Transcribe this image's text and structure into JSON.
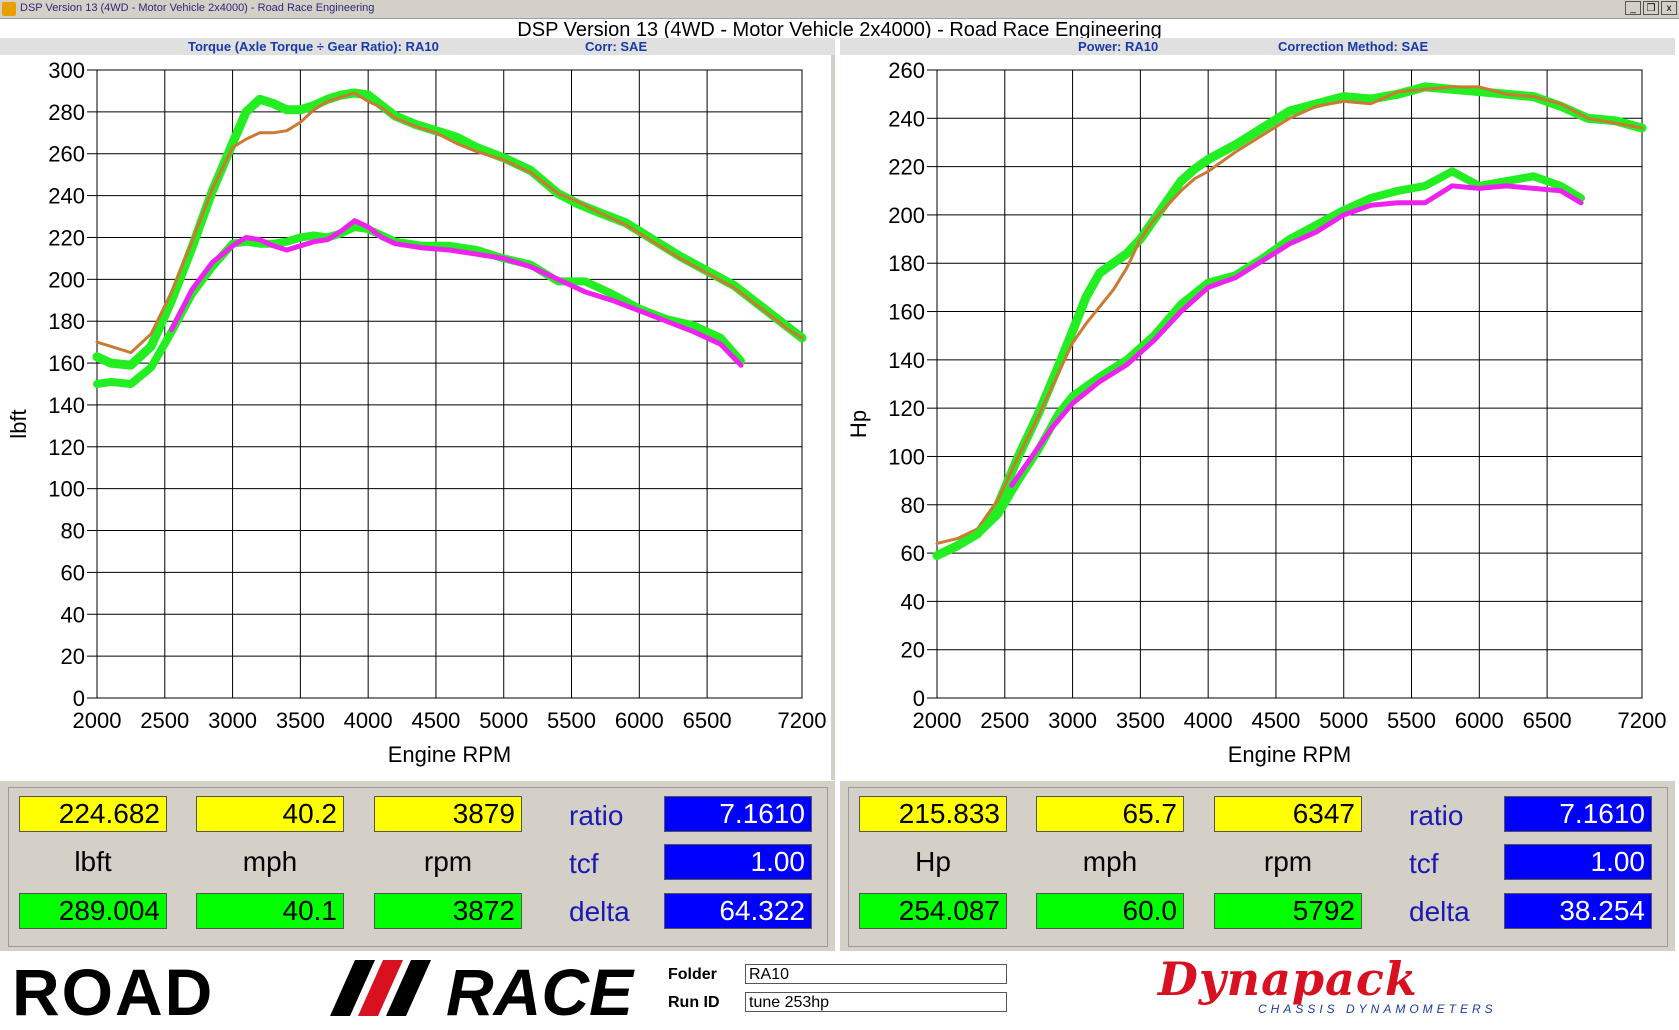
{
  "window": {
    "title": "DSP Version 13 (4WD - Motor Vehicle 2x4000) - Road Race Engineering",
    "minimize": "_",
    "restore": "❒",
    "close": "x"
  },
  "app_title": "DSP Version 13 (4WD - Motor Vehicle 2x4000) - Road Race Engineering",
  "left_header": {
    "measure": "Torque (Axle Torque ÷ Gear Ratio): RA10",
    "corr": "Corr: SAE"
  },
  "right_header": {
    "measure": "Power: RA10",
    "corr": "Correction Method: SAE"
  },
  "colors": {
    "green": "#22ee22",
    "orange": "#cc7a33",
    "magenta": "#ee22ee"
  },
  "chart_data": [
    {
      "type": "line",
      "xlabel": "Engine RPM",
      "ylabel": "lbft",
      "xlim": [
        2000,
        7200
      ],
      "ylim": [
        0,
        300
      ],
      "xticks": [
        2000,
        2500,
        3000,
        3500,
        4000,
        4500,
        5000,
        5500,
        6000,
        6500,
        7200
      ],
      "yticks": [
        0,
        20,
        40,
        60,
        80,
        100,
        120,
        140,
        160,
        180,
        200,
        220,
        240,
        260,
        280,
        300
      ],
      "grid": true,
      "series": [
        {
          "color": "green",
          "width": 9,
          "x": [
            2000,
            2100,
            2250,
            2400,
            2550,
            2700,
            2850,
            3000,
            3100,
            3200,
            3300,
            3400,
            3500,
            3600,
            3700,
            3800,
            3900,
            4000,
            4100,
            4200,
            4350,
            4500,
            4650,
            4800,
            5000,
            5200,
            5400,
            5550,
            5700,
            5900,
            6100,
            6300,
            6500,
            6700,
            6900,
            7100,
            7200
          ],
          "y": [
            163,
            160,
            159,
            168,
            190,
            215,
            242,
            265,
            280,
            286,
            284,
            281,
            281,
            283,
            286,
            288,
            289,
            288,
            283,
            278,
            274,
            271,
            268,
            263,
            258,
            252,
            241,
            236,
            232,
            227,
            219,
            211,
            204,
            197,
            187,
            177,
            172
          ]
        },
        {
          "color": "orange",
          "width": 3,
          "x": [
            2000,
            2100,
            2250,
            2400,
            2550,
            2700,
            2850,
            3000,
            3100,
            3200,
            3300,
            3400,
            3500,
            3600,
            3700,
            3800,
            3900,
            4000,
            4100,
            4200,
            4350,
            4500,
            4650,
            4800,
            5000,
            5200,
            5400,
            5550,
            5700,
            5900,
            6100,
            6300,
            6500,
            6700,
            6900,
            7100,
            7200
          ],
          "y": [
            170,
            168,
            165,
            174,
            194,
            218,
            243,
            263,
            267,
            270,
            270,
            271,
            275,
            281,
            285,
            287,
            289,
            285,
            282,
            277,
            273,
            270,
            265,
            261,
            257,
            251,
            241,
            237,
            232,
            226,
            218,
            210,
            203,
            196,
            186,
            176,
            172
          ]
        },
        {
          "color": "green",
          "width": 8,
          "x": [
            2000,
            2100,
            2250,
            2400,
            2550,
            2700,
            2850,
            3000,
            3100,
            3200,
            3300,
            3400,
            3500,
            3600,
            3700,
            3800,
            3900,
            4000,
            4100,
            4200,
            4400,
            4600,
            4800,
            5000,
            5200,
            5400,
            5600,
            5800,
            6000,
            6200,
            6400,
            6600,
            6750
          ],
          "y": [
            150,
            151,
            150,
            158,
            175,
            193,
            206,
            217,
            218,
            217,
            217,
            218,
            220,
            221,
            220,
            222,
            225,
            224,
            221,
            218,
            216,
            216,
            214,
            210,
            207,
            199,
            199,
            193,
            186,
            181,
            178,
            172,
            161
          ]
        },
        {
          "color": "magenta",
          "width": 5,
          "x": [
            2550,
            2700,
            2850,
            3000,
            3100,
            3200,
            3300,
            3400,
            3500,
            3600,
            3700,
            3800,
            3900,
            4000,
            4100,
            4200,
            4400,
            4600,
            4800,
            5000,
            5200,
            5400,
            5600,
            5800,
            6000,
            6200,
            6400,
            6600,
            6750
          ],
          "y": [
            176,
            195,
            208,
            216,
            220,
            219,
            216,
            214,
            216,
            218,
            219,
            223,
            228,
            225,
            220,
            217,
            215,
            214,
            212,
            210,
            206,
            200,
            194,
            190,
            185,
            180,
            175,
            169,
            159
          ]
        }
      ]
    },
    {
      "type": "line",
      "xlabel": "Engine RPM",
      "ylabel": "Hp",
      "xlim": [
        2000,
        7200
      ],
      "ylim": [
        0,
        260
      ],
      "xticks": [
        2000,
        2500,
        3000,
        3500,
        4000,
        4500,
        5000,
        5500,
        6000,
        6500,
        7200
      ],
      "yticks": [
        0,
        20,
        40,
        60,
        80,
        100,
        120,
        140,
        160,
        180,
        200,
        220,
        240,
        260
      ],
      "grid": true,
      "series": [
        {
          "color": "green",
          "width": 9,
          "x": [
            2000,
            2150,
            2300,
            2450,
            2600,
            2750,
            2900,
            3000,
            3100,
            3200,
            3300,
            3400,
            3500,
            3600,
            3700,
            3800,
            3900,
            4000,
            4200,
            4400,
            4600,
            4800,
            5000,
            5200,
            5400,
            5600,
            5800,
            6000,
            6200,
            6400,
            6600,
            6800,
            7000,
            7200
          ],
          "y": [
            59,
            63,
            68,
            80,
            100,
            118,
            138,
            152,
            166,
            176,
            180,
            184,
            190,
            198,
            206,
            214,
            219,
            223,
            229,
            236,
            243,
            246,
            249,
            248,
            250,
            253,
            252,
            251,
            250,
            249,
            245,
            240,
            239,
            236
          ]
        },
        {
          "color": "orange",
          "width": 3,
          "x": [
            2000,
            2150,
            2300,
            2450,
            2600,
            2750,
            2900,
            3000,
            3100,
            3200,
            3300,
            3400,
            3500,
            3600,
            3700,
            3800,
            3900,
            4000,
            4200,
            4400,
            4600,
            4800,
            5000,
            5200,
            5400,
            5600,
            5800,
            6000,
            6200,
            6400,
            6600,
            6800,
            7000,
            7200
          ],
          "y": [
            64,
            66,
            70,
            82,
            100,
            117,
            135,
            147,
            155,
            162,
            169,
            178,
            190,
            198,
            204,
            210,
            215,
            218,
            226,
            233,
            240,
            245,
            247,
            246,
            251,
            252,
            253,
            253,
            250,
            249,
            246,
            240,
            238,
            236
          ]
        },
        {
          "color": "green",
          "width": 8,
          "x": [
            2000,
            2150,
            2300,
            2450,
            2600,
            2750,
            2900,
            3000,
            3200,
            3400,
            3600,
            3800,
            4000,
            4200,
            4400,
            4600,
            4800,
            5000,
            5200,
            5400,
            5600,
            5800,
            6000,
            6200,
            6400,
            6600,
            6750
          ],
          "y": [
            59,
            63,
            68,
            76,
            90,
            103,
            118,
            125,
            133,
            140,
            150,
            163,
            172,
            175,
            182,
            190,
            196,
            202,
            207,
            210,
            212,
            218,
            212,
            214,
            216,
            212,
            207
          ]
        },
        {
          "color": "magenta",
          "width": 5,
          "x": [
            2550,
            2700,
            2850,
            3000,
            3200,
            3400,
            3600,
            3800,
            4000,
            4200,
            4400,
            4600,
            4800,
            5000,
            5200,
            5400,
            5600,
            5800,
            6000,
            6200,
            6400,
            6600,
            6750
          ],
          "y": [
            88,
            100,
            112,
            122,
            131,
            138,
            148,
            160,
            170,
            174,
            181,
            188,
            193,
            200,
            204,
            205,
            205,
            212,
            211,
            212,
            211,
            210,
            205
          ]
        }
      ]
    }
  ],
  "left_readout": {
    "top": [
      "224.682",
      "40.2",
      "3879"
    ],
    "units": [
      "lbft",
      "mph",
      "rpm"
    ],
    "bottom": [
      "289.004",
      "40.1",
      "3872"
    ],
    "labels": [
      "ratio",
      "tcf",
      "delta"
    ],
    "blue": [
      "7.1610",
      "1.00",
      "64.322"
    ]
  },
  "right_readout": {
    "top": [
      "215.833",
      "65.7",
      "6347"
    ],
    "units": [
      "Hp",
      "mph",
      "rpm"
    ],
    "bottom": [
      "254.087",
      "60.0",
      "5792"
    ],
    "labels": [
      "ratio",
      "tcf",
      "delta"
    ],
    "blue": [
      "7.1610",
      "1.00",
      "38.254"
    ]
  },
  "footer": {
    "logo_road": "ROAD",
    "logo_race": "RACE",
    "folder_label": "Folder",
    "folder_value": "RA10",
    "runid_label": "Run ID",
    "runid_value": "tune 253hp",
    "dynapack": "Dynapack",
    "dynapack_sub": "CHASSIS DYNAMOMETERS"
  }
}
